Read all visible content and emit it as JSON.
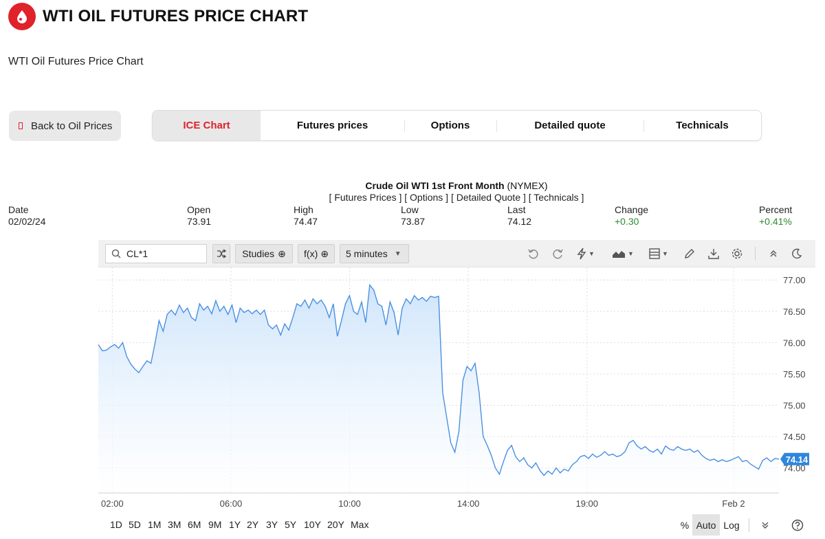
{
  "header": {
    "title": "WTI OIL FUTURES PRICE CHART",
    "subtitle": "WTI Oil Futures Price Chart",
    "brand_color": "#e0222b"
  },
  "back_button": {
    "label": "Back to Oil Prices"
  },
  "tabs": [
    {
      "label": "ICE Chart",
      "active": true
    },
    {
      "label": "Futures prices",
      "active": false
    },
    {
      "label": "Options",
      "active": false
    },
    {
      "label": "Detailed quote",
      "active": false
    },
    {
      "label": "Technicals",
      "active": false
    }
  ],
  "quote": {
    "instrument": "Crude Oil WTI 1st Front Month",
    "exchange": "(NYMEX)",
    "links_text": "[ Futures Prices ] [ Options ] [ Detailed Quote ] [ Technicals ]",
    "columns": [
      {
        "label": "Date",
        "value": "02/02/24"
      },
      {
        "label": "Open",
        "value": "73.91"
      },
      {
        "label": "High",
        "value": "74.47"
      },
      {
        "label": "Low",
        "value": "73.87"
      },
      {
        "label": "Last",
        "value": "74.12"
      },
      {
        "label": "Change",
        "value": "+0.30"
      },
      {
        "label": "Percent",
        "value": "+0.41%"
      }
    ]
  },
  "toolbar": {
    "symbol": "CL*1",
    "studies_label": "Studies",
    "fx_label": "f(x)",
    "interval_label": "5 minutes",
    "icons": [
      "undo-icon",
      "redo-icon",
      "lightning-icon",
      "chart-type-icon",
      "layout-icon",
      "pencil-icon",
      "download-icon",
      "gear-icon",
      "collapse-icon",
      "moon-icon"
    ]
  },
  "bottom_bar": {
    "ranges": [
      "1D",
      "5D",
      "1M",
      "3M",
      "6M",
      "9M",
      "1Y",
      "2Y",
      "3Y",
      "5Y",
      "10Y",
      "20Y",
      "Max"
    ],
    "percent_label": "%",
    "auto_label": "Auto",
    "log_label": "Log"
  },
  "chart_data": {
    "type": "area",
    "title": "",
    "xlabel": "",
    "ylabel": "",
    "ylim": [
      73.6,
      77.2
    ],
    "y_ticks": [
      "77.00",
      "76.50",
      "76.00",
      "75.50",
      "75.00",
      "74.50",
      "74.00"
    ],
    "x_ticks": [
      {
        "label": "02:00",
        "t": 4
      },
      {
        "label": "06:00",
        "t": 38
      },
      {
        "label": "10:00",
        "t": 72
      },
      {
        "label": "14:00",
        "t": 106
      },
      {
        "label": "19:00",
        "t": 140
      },
      {
        "label": "Feb 2",
        "t": 182
      }
    ],
    "t_range": [
      0,
      195
    ],
    "last_price_label": "74.14",
    "line_color": "#4a90e2",
    "fill_color": "#cfe5fb",
    "values": [
      75.97,
      75.87,
      75.88,
      75.93,
      75.97,
      75.91,
      76.0,
      75.78,
      75.66,
      75.58,
      75.52,
      75.62,
      75.71,
      75.67,
      75.99,
      76.35,
      76.18,
      76.45,
      76.52,
      76.44,
      76.6,
      76.48,
      76.55,
      76.4,
      76.35,
      76.62,
      76.52,
      76.58,
      76.46,
      76.67,
      76.5,
      76.58,
      76.45,
      76.6,
      76.32,
      76.55,
      76.48,
      76.52,
      76.46,
      76.52,
      76.45,
      76.52,
      76.28,
      76.22,
      76.28,
      76.12,
      76.3,
      76.2,
      76.4,
      76.62,
      76.58,
      76.68,
      76.55,
      76.7,
      76.62,
      76.68,
      76.58,
      76.4,
      76.62,
      76.1,
      76.35,
      76.62,
      76.75,
      76.5,
      76.45,
      76.65,
      76.32,
      76.92,
      76.84,
      76.62,
      76.58,
      76.28,
      76.65,
      76.48,
      76.12,
      76.55,
      76.7,
      76.62,
      76.75,
      76.68,
      76.72,
      76.66,
      76.74,
      76.72,
      76.74,
      75.2,
      74.8,
      74.4,
      74.25,
      74.58,
      75.4,
      75.62,
      75.55,
      75.67,
      75.2,
      74.5,
      74.36,
      74.2,
      74.0,
      73.9,
      74.1,
      74.28,
      74.36,
      74.18,
      74.1,
      74.16,
      74.05,
      74.0,
      74.08,
      73.96,
      73.88,
      73.95,
      73.9,
      74.0,
      73.92,
      73.98,
      73.95,
      74.05,
      74.1,
      74.18,
      74.2,
      74.15,
      74.22,
      74.17,
      74.2,
      74.26,
      74.2,
      74.22,
      74.18,
      74.2,
      74.26,
      74.4,
      74.44,
      74.35,
      74.3,
      74.34,
      74.28,
      74.25,
      74.3,
      74.22,
      74.35,
      74.3,
      74.28,
      74.34,
      74.3,
      74.28,
      74.3,
      74.25,
      74.28,
      74.2,
      74.15,
      74.12,
      74.14,
      74.1,
      74.13,
      74.1,
      74.12,
      74.15,
      74.18,
      74.1,
      74.12,
      74.06,
      74.02,
      73.98,
      74.12,
      74.16,
      74.1,
      74.15,
      74.14
    ]
  }
}
